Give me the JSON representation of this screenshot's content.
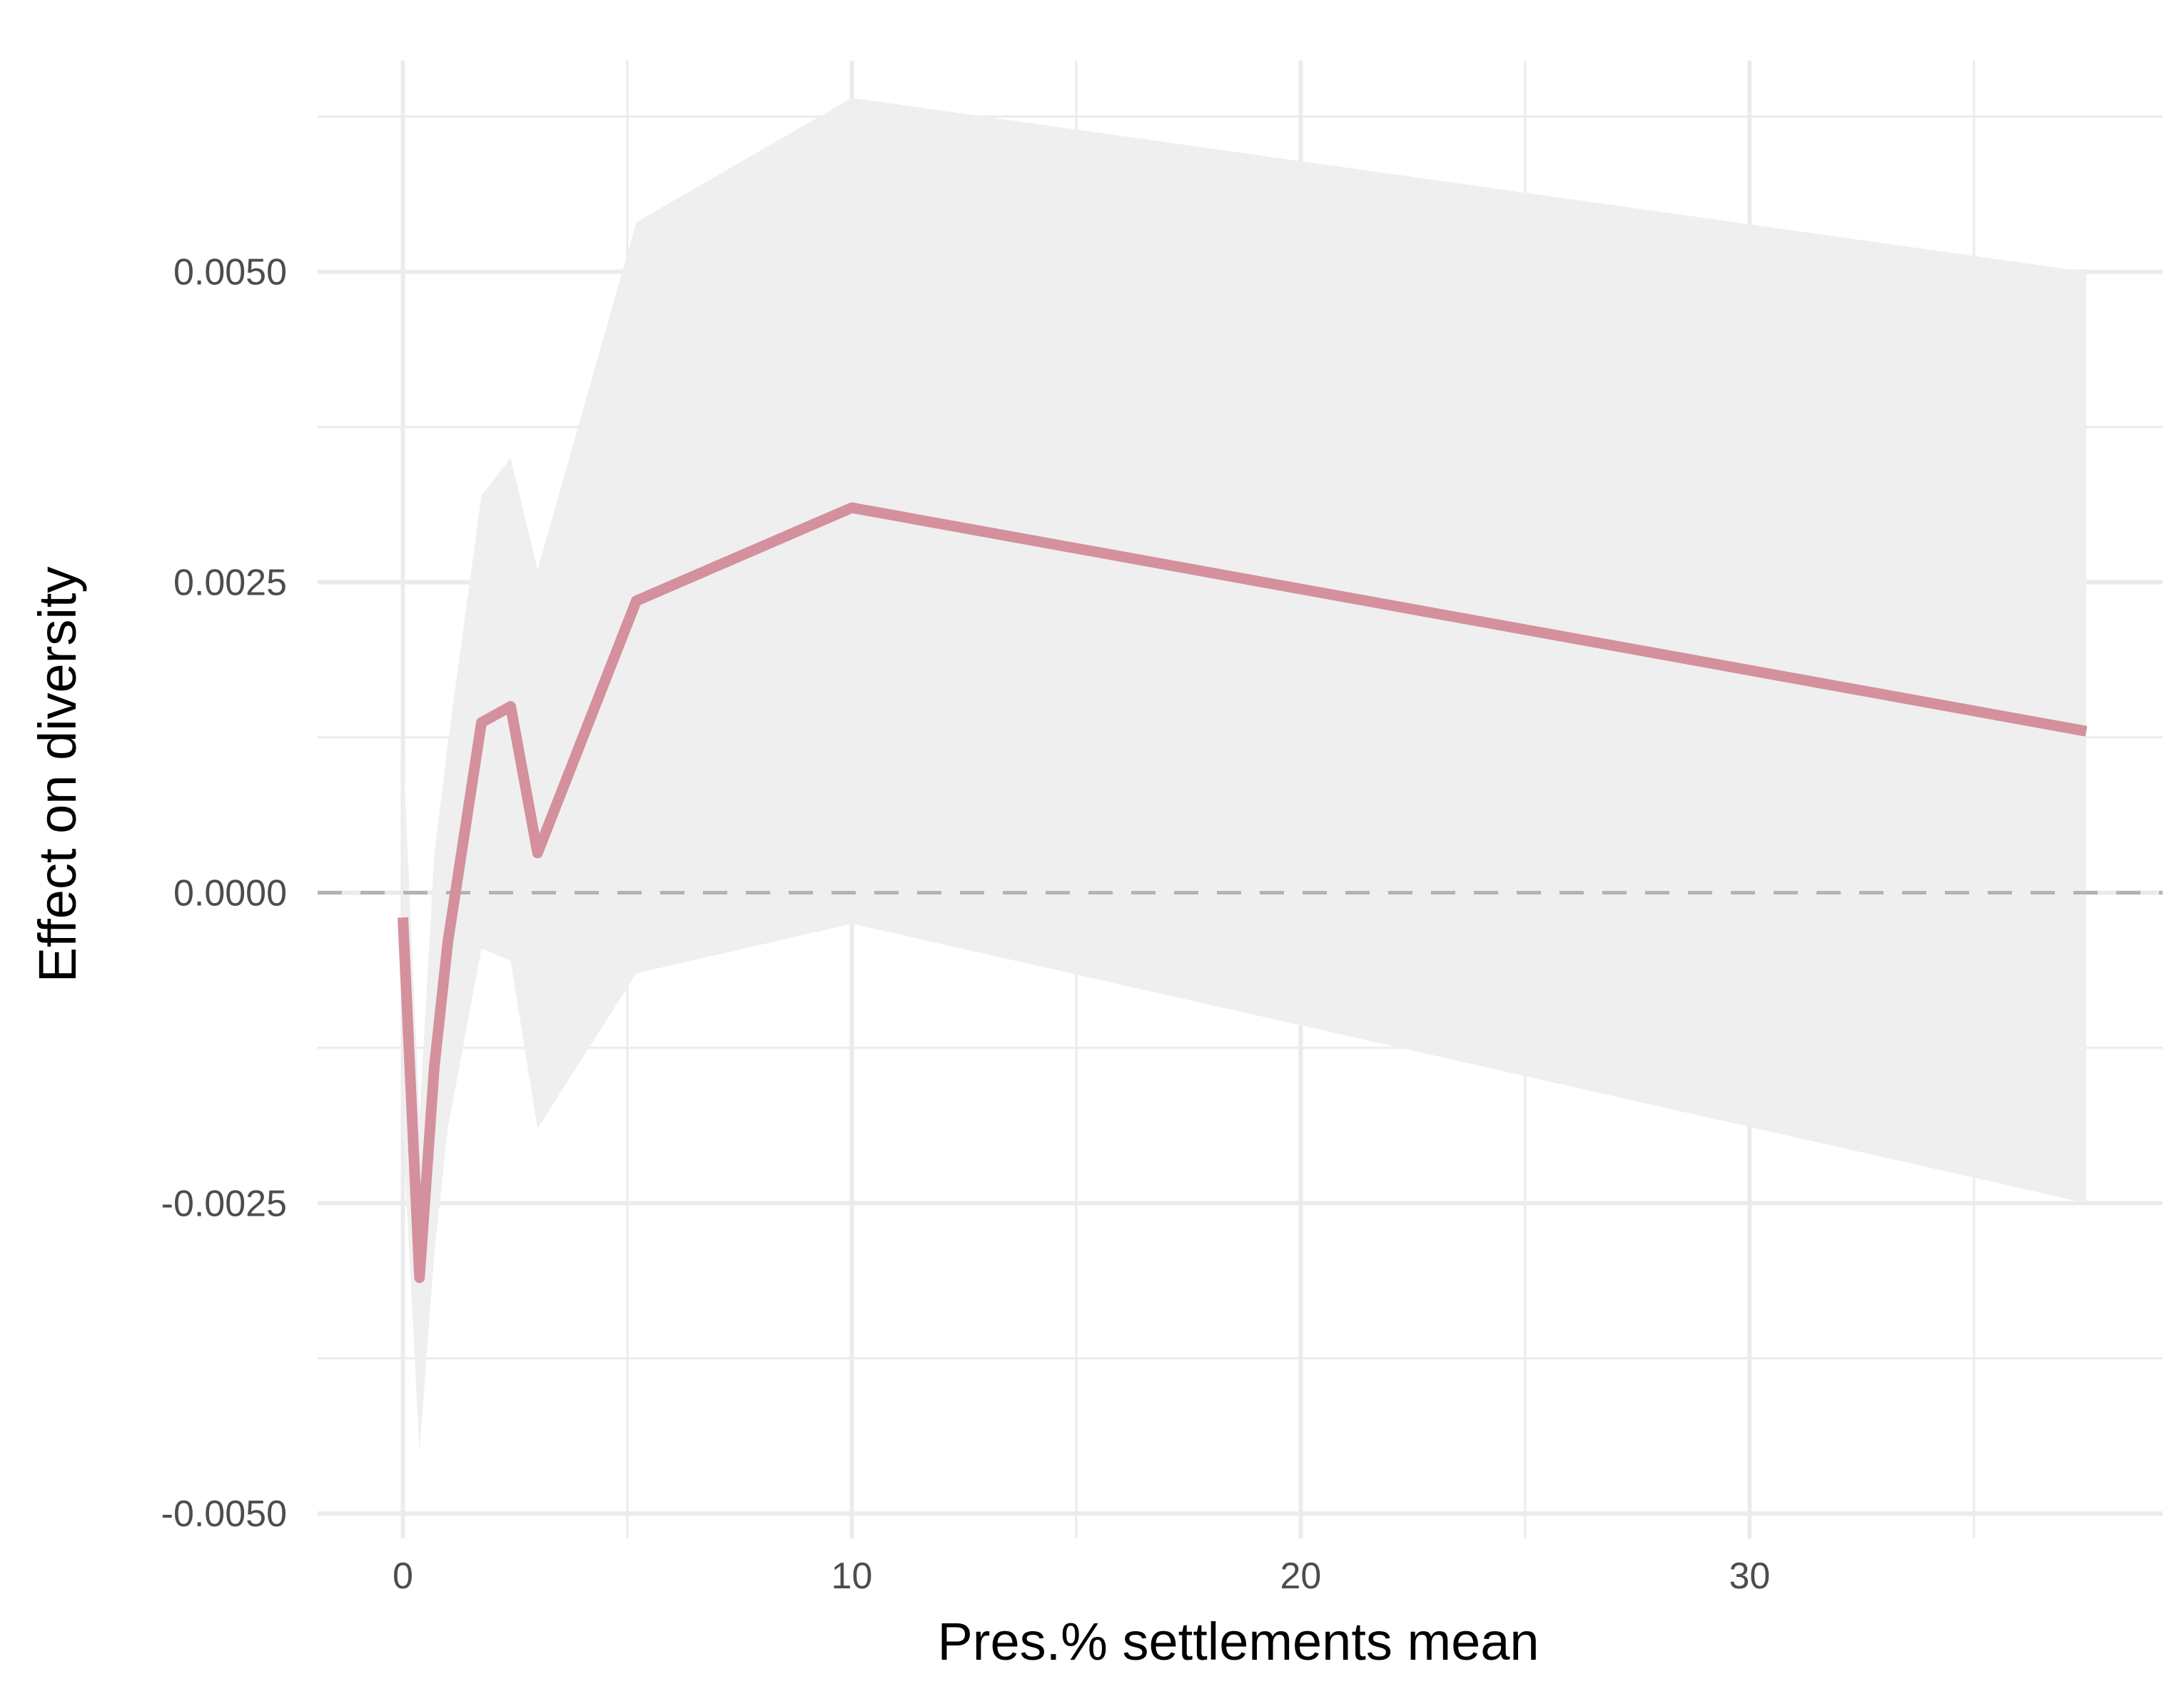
{
  "chart_data": {
    "type": "line",
    "title": "",
    "xlabel": "Pres.% settlements mean",
    "ylabel": "Effect on diversity",
    "xlim": [
      -1.9,
      39.2
    ],
    "ylim": [
      -0.0052,
      0.0067
    ],
    "x_ticks": [
      0,
      10,
      20,
      30
    ],
    "x_tick_labels": [
      "0",
      "10",
      "20",
      "30"
    ],
    "y_ticks": [
      -0.005,
      -0.0025,
      0.0,
      0.0025,
      0.005
    ],
    "y_tick_labels": [
      "-0.0050",
      "-0.0025",
      "0.0000",
      "0.0025",
      "0.0050"
    ],
    "grid": true,
    "reference_line": {
      "y": 0,
      "style": "dashed"
    },
    "series": [
      {
        "x": [
          0,
          0.37,
          0.7,
          1.0,
          1.75,
          2.4,
          3.0,
          5.2,
          10.0,
          37.5
        ],
        "values": [
          -0.0002,
          -0.0031,
          -0.0014,
          -0.0004,
          0.00137,
          0.0015,
          0.00032,
          0.00235,
          0.0031,
          0.0013
        ],
        "lower": [
          -0.0019,
          -0.0045,
          -0.0029,
          -0.0019,
          -0.00045,
          -0.00055,
          -0.0019,
          -0.00065,
          -0.00025,
          -0.0025
        ],
        "upper": [
          0.0012,
          -0.0018,
          0.0003,
          0.0012,
          0.0032,
          0.0035,
          0.0026,
          0.0054,
          0.0064,
          0.005
        ],
        "color": "#d4909d",
        "band_color": "#efefef"
      }
    ]
  }
}
